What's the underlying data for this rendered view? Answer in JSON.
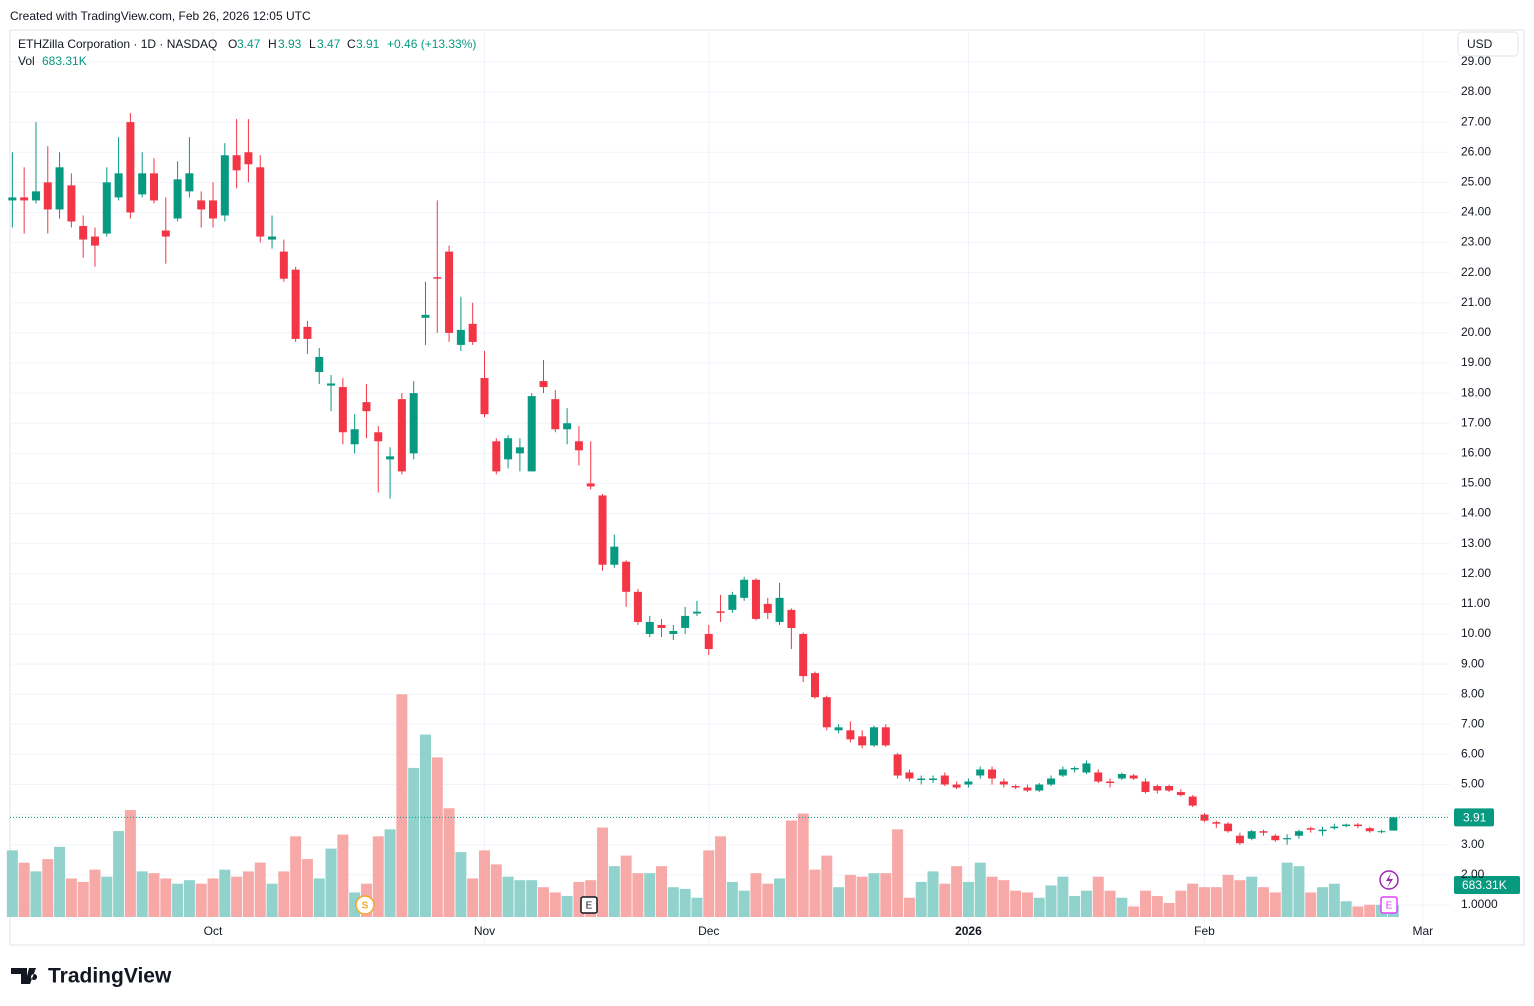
{
  "credit": "Created with TradingView.com, Feb 26, 2026 12:05 UTC",
  "brand": "TradingView",
  "currency": "USD",
  "chart_data": {
    "type": "candlestick",
    "title": "ETHZilla Corporation · 1D · NASDAQ",
    "ohlc_letters": [
      "O",
      "H",
      "L",
      "C"
    ],
    "change_label": "+0.46 (+13.33%)",
    "up_color": "#089981",
    "down_color": "#f23645",
    "open": [
      24.4,
      24.5,
      24.4,
      25.0,
      24.1,
      24.9,
      23.55,
      23.2,
      23.3,
      24.5,
      27.0,
      24.6,
      25.3,
      23.4,
      23.8,
      24.7,
      24.4,
      24.4,
      23.9,
      25.9,
      26.0,
      25.5,
      23.1,
      22.7,
      22.1,
      20.2,
      18.7,
      18.25,
      18.2,
      16.3,
      17.7,
      16.7,
      15.8,
      17.8,
      16.0,
      20.5,
      21.85,
      22.7,
      19.6,
      20.3,
      18.5,
      16.4,
      15.8,
      16.0,
      15.4,
      18.4,
      17.8,
      16.8,
      16.4,
      15.0,
      14.6,
      12.3,
      12.4,
      11.4,
      10.0,
      10.3,
      10.0,
      10.2,
      10.68,
      10.0,
      10.75,
      10.8,
      11.2,
      11.8,
      11.0,
      10.4,
      10.8,
      10.0,
      8.7,
      7.9,
      6.8,
      6.8,
      6.6,
      6.3,
      6.9,
      6.0,
      5.4,
      5.15,
      5.15,
      5.3,
      5.0,
      5.0,
      5.3,
      5.5,
      5.1,
      4.95,
      4.9,
      4.8,
      5.0,
      5.3,
      5.5,
      5.4,
      5.4,
      5.1,
      5.2,
      5.3,
      5.1,
      4.95,
      4.95,
      4.75,
      4.6,
      4.0,
      3.75,
      3.7,
      3.3,
      3.2,
      3.45,
      3.3,
      3.18,
      3.3,
      3.55,
      3.45,
      3.55,
      3.62,
      3.67,
      3.55,
      3.42,
      3.47
    ],
    "high": [
      26.0,
      25.5,
      27.0,
      26.2,
      26.0,
      25.3,
      23.9,
      23.5,
      25.5,
      26.5,
      27.3,
      26.0,
      25.8,
      24.5,
      25.7,
      26.5,
      24.7,
      25.0,
      26.3,
      27.1,
      27.1,
      25.9,
      23.9,
      23.1,
      22.2,
      20.4,
      19.5,
      18.6,
      18.5,
      17.3,
      18.3,
      16.9,
      16.2,
      18.0,
      18.4,
      21.7,
      24.4,
      22.9,
      21.2,
      21.0,
      19.4,
      16.5,
      16.6,
      16.5,
      18.0,
      19.1,
      18.1,
      17.5,
      16.9,
      16.4,
      14.65,
      13.3,
      12.45,
      11.5,
      10.6,
      10.5,
      10.3,
      10.9,
      11.1,
      10.3,
      11.3,
      11.4,
      11.9,
      11.85,
      11.2,
      11.7,
      10.85,
      10.05,
      8.75,
      7.95,
      7.0,
      7.1,
      6.8,
      6.95,
      7.0,
      6.05,
      5.5,
      5.3,
      5.3,
      5.4,
      5.1,
      5.2,
      5.6,
      5.6,
      5.2,
      5.0,
      5.0,
      5.05,
      5.3,
      5.6,
      5.6,
      5.8,
      5.5,
      5.2,
      5.4,
      5.35,
      5.2,
      5.0,
      5.0,
      4.85,
      4.65,
      4.05,
      3.8,
      3.75,
      3.4,
      3.5,
      3.5,
      3.35,
      3.35,
      3.5,
      3.6,
      3.6,
      3.7,
      3.7,
      3.72,
      3.6,
      3.5,
      3.93
    ],
    "low": [
      23.5,
      23.3,
      24.3,
      23.3,
      23.8,
      23.5,
      22.5,
      22.2,
      23.2,
      24.4,
      23.8,
      24.5,
      24.3,
      22.3,
      23.7,
      24.5,
      23.5,
      23.5,
      23.7,
      24.8,
      25.0,
      23.0,
      22.8,
      21.7,
      19.7,
      19.3,
      18.3,
      17.4,
      16.3,
      16.0,
      16.5,
      14.7,
      14.5,
      15.3,
      15.8,
      19.6,
      20.0,
      19.7,
      19.4,
      19.6,
      17.2,
      15.3,
      15.5,
      15.4,
      15.4,
      18.0,
      16.7,
      16.3,
      15.6,
      14.8,
      12.1,
      12.2,
      10.9,
      10.3,
      9.9,
      9.9,
      9.8,
      10.0,
      10.6,
      9.3,
      10.4,
      10.7,
      11.1,
      10.45,
      10.5,
      10.3,
      9.5,
      8.4,
      7.85,
      6.8,
      6.7,
      6.4,
      6.2,
      6.25,
      6.25,
      5.2,
      5.1,
      5.0,
      5.05,
      4.95,
      4.85,
      4.9,
      5.2,
      5.0,
      4.9,
      4.85,
      4.75,
      4.75,
      4.95,
      5.25,
      5.4,
      5.35,
      5.05,
      4.9,
      5.15,
      5.15,
      4.7,
      4.7,
      4.75,
      4.6,
      4.25,
      3.75,
      3.55,
      3.4,
      3.0,
      3.15,
      3.3,
      3.1,
      3.0,
      3.2,
      3.4,
      3.3,
      3.5,
      3.58,
      3.55,
      3.4,
      3.38,
      3.47
    ],
    "close": [
      24.5,
      24.4,
      24.7,
      24.1,
      25.5,
      23.7,
      23.1,
      22.9,
      25.0,
      25.3,
      24.0,
      25.3,
      24.4,
      23.2,
      25.1,
      25.3,
      24.1,
      23.8,
      25.9,
      25.4,
      25.6,
      23.2,
      23.2,
      21.8,
      19.8,
      19.8,
      19.2,
      18.32,
      16.7,
      16.8,
      17.4,
      16.4,
      15.9,
      15.4,
      18.0,
      20.6,
      21.8,
      20.0,
      20.1,
      19.7,
      17.3,
      15.4,
      16.5,
      16.2,
      17.9,
      18.2,
      16.8,
      17.0,
      16.1,
      14.9,
      12.3,
      12.9,
      11.4,
      10.4,
      10.4,
      10.2,
      10.1,
      10.6,
      10.74,
      9.5,
      10.7,
      11.3,
      11.8,
      10.5,
      10.7,
      11.2,
      10.2,
      8.6,
      7.9,
      6.9,
      6.9,
      6.5,
      6.3,
      6.9,
      6.3,
      5.3,
      5.2,
      5.2,
      5.2,
      5.0,
      4.9,
      5.1,
      5.5,
      5.2,
      5.0,
      4.9,
      4.8,
      5.0,
      5.2,
      5.5,
      5.55,
      5.7,
      5.1,
      5.05,
      5.35,
      5.2,
      4.75,
      4.8,
      4.8,
      4.65,
      4.3,
      3.8,
      3.7,
      3.45,
      3.05,
      3.45,
      3.4,
      3.15,
      3.22,
      3.45,
      3.5,
      3.5,
      3.6,
      3.67,
      3.62,
      3.45,
      3.45,
      3.91
    ],
    "volume": {
      "name": "Vol",
      "last_label": "683.31K",
      "up_color": "#92d2cc",
      "down_color": "#f7a9a7",
      "ylim": [
        0,
        13000000
      ],
      "values": [
        3800000,
        3100000,
        2600000,
        3300000,
        4000000,
        2200000,
        2000000,
        2700000,
        2300000,
        4900000,
        6100000,
        2600000,
        2500000,
        2200000,
        1900000,
        2100000,
        1900000,
        2200000,
        2700000,
        2300000,
        2600000,
        3100000,
        1900000,
        2600000,
        4600000,
        3300000,
        2200000,
        3900000,
        4700000,
        1400000,
        1900000,
        4600000,
        5000000,
        12700000,
        8500000,
        10400000,
        9100000,
        6200000,
        3700000,
        2200000,
        3800000,
        3000000,
        2300000,
        2100000,
        2100000,
        1700000,
        1400000,
        1200000,
        2000000,
        2100000,
        5100000,
        2900000,
        3500000,
        2500000,
        2500000,
        2900000,
        1700000,
        1600000,
        1100000,
        3800000,
        4600000,
        2000000,
        1500000,
        2500000,
        1900000,
        2200000,
        5500000,
        5900000,
        2700000,
        3500000,
        1700000,
        2400000,
        2300000,
        2500000,
        2500000,
        5000000,
        1100000,
        2000000,
        2600000,
        1900000,
        2900000,
        2000000,
        3100000,
        2300000,
        2100000,
        1500000,
        1400000,
        1100000,
        1800000,
        2300000,
        1200000,
        1500000,
        2300000,
        1500000,
        1100000,
        600000,
        1500000,
        1200000,
        800000,
        1500000,
        1900000,
        1700000,
        1700000,
        2400000,
        2100000,
        2300000,
        1700000,
        1400000,
        3100000,
        2900000,
        1400000,
        1700000,
        1900000,
        900000,
        600000,
        700000,
        700000,
        683310
      ]
    },
    "xlim": [
      -0.2,
      121.8
    ],
    "xticks": [
      {
        "value": 17,
        "label": "Oct"
      },
      {
        "value": 40,
        "label": "Nov"
      },
      {
        "value": 59,
        "label": "Dec"
      },
      {
        "value": 81,
        "label": "2026"
      },
      {
        "value": 101,
        "label": "Feb"
      },
      {
        "value": 119.5,
        "label": "Mar"
      }
    ],
    "ylim": [
      -0.33,
      30.06
    ],
    "yticks": [
      {
        "value": 1,
        "label": "1.0000"
      },
      {
        "value": 2,
        "label": "2.00"
      },
      {
        "value": 3,
        "label": "3.00"
      },
      {
        "value": 4,
        "label": "4.00"
      },
      {
        "value": 5,
        "label": "5.00"
      },
      {
        "value": 6,
        "label": "6.00"
      },
      {
        "value": 7,
        "label": "7.00"
      },
      {
        "value": 8,
        "label": "8.00"
      },
      {
        "value": 9,
        "label": "9.00"
      },
      {
        "value": 10,
        "label": "10.00"
      },
      {
        "value": 11,
        "label": "11.00"
      },
      {
        "value": 12,
        "label": "12.00"
      },
      {
        "value": 13,
        "label": "13.00"
      },
      {
        "value": 14,
        "label": "14.00"
      },
      {
        "value": 15,
        "label": "15.00"
      },
      {
        "value": 16,
        "label": "16.00"
      },
      {
        "value": 17,
        "label": "17.00"
      },
      {
        "value": 18,
        "label": "18.00"
      },
      {
        "value": 19,
        "label": "19.00"
      },
      {
        "value": 20,
        "label": "20.00"
      },
      {
        "value": 21,
        "label": "21.00"
      },
      {
        "value": 22,
        "label": "22.00"
      },
      {
        "value": 23,
        "label": "23.00"
      },
      {
        "value": 24,
        "label": "24.00"
      },
      {
        "value": 25,
        "label": "25.00"
      },
      {
        "value": 26,
        "label": "26.00"
      },
      {
        "value": 27,
        "label": "27.00"
      },
      {
        "value": 28,
        "label": "28.00"
      },
      {
        "value": 29,
        "label": "29.00"
      }
    ],
    "grid": true,
    "events": [
      "S",
      "E",
      "E"
    ]
  }
}
